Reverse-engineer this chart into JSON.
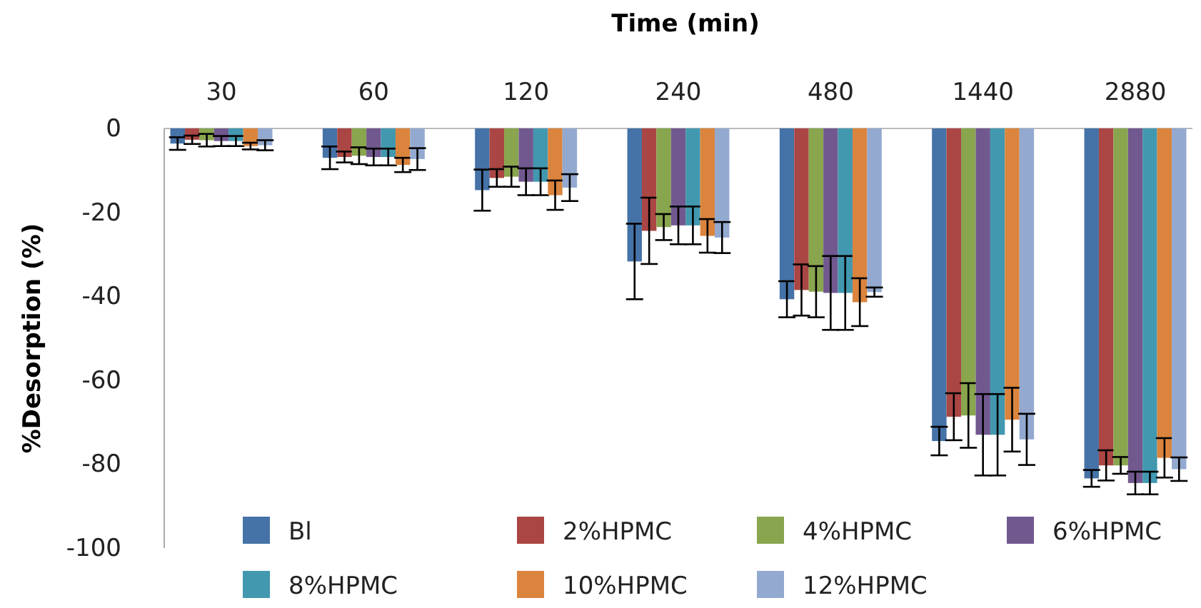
{
  "chart_data": {
    "type": "bar",
    "xlabel": "Time (min)",
    "ylabel": "%Desorption (%)",
    "categories": [
      "30",
      "60",
      "120",
      "240",
      "480",
      "1440",
      "2880"
    ],
    "ylim": [
      -100,
      0
    ],
    "yticks": [
      0,
      -20,
      -40,
      -60,
      -80,
      -100
    ],
    "grid": false,
    "legend": "bottom",
    "series": [
      {
        "name": "Bl",
        "color": "#4572a7",
        "values": [
          -3.6,
          -7.0,
          -14.7,
          -31.7,
          -40.7,
          -74.5,
          -83.4
        ],
        "errors": [
          1.5,
          2.7,
          4.9,
          9.0,
          4.3,
          3.4,
          2.0
        ]
      },
      {
        "name": "2%HPMC",
        "color": "#aa4643",
        "values": [
          -2.7,
          -6.8,
          -11.8,
          -24.4,
          -38.5,
          -68.7,
          -80.3
        ],
        "errors": [
          1.0,
          1.3,
          2.1,
          7.9,
          6.1,
          5.6,
          3.6
        ]
      },
      {
        "name": "4%HPMC",
        "color": "#89a54e",
        "values": [
          -2.8,
          -6.5,
          -11.5,
          -23.5,
          -38.9,
          -68.4,
          -80.3
        ],
        "errors": [
          1.5,
          2.0,
          2.4,
          3.1,
          6.1,
          7.7,
          2.0
        ]
      },
      {
        "name": "6%HPMC",
        "color": "#71588f",
        "values": [
          -3.0,
          -6.8,
          -12.7,
          -23.1,
          -39.2,
          -73.0,
          -84.5
        ],
        "errors": [
          1.2,
          2.0,
          3.2,
          4.5,
          8.8,
          9.7,
          2.7
        ]
      },
      {
        "name": "8%HPMC",
        "color": "#4198af",
        "values": [
          -3.0,
          -6.8,
          -12.7,
          -23.1,
          -39.2,
          -73.0,
          -84.5
        ],
        "errors": [
          1.2,
          2.0,
          3.2,
          4.5,
          8.8,
          9.7,
          2.7
        ]
      },
      {
        "name": "10%HPMC",
        "color": "#db843d",
        "values": [
          -4.2,
          -8.7,
          -15.9,
          -25.6,
          -41.4,
          -69.4,
          -78.5
        ],
        "errors": [
          0.8,
          1.7,
          3.5,
          4.0,
          5.7,
          7.6,
          4.7
        ]
      },
      {
        "name": "12%HPMC",
        "color": "#93a9cf",
        "values": [
          -4.0,
          -7.3,
          -14.1,
          -26.0,
          -39.0,
          -74.1,
          -81.2
        ],
        "errors": [
          1.2,
          2.6,
          3.2,
          3.7,
          1.1,
          6.1,
          2.8
        ]
      }
    ]
  }
}
